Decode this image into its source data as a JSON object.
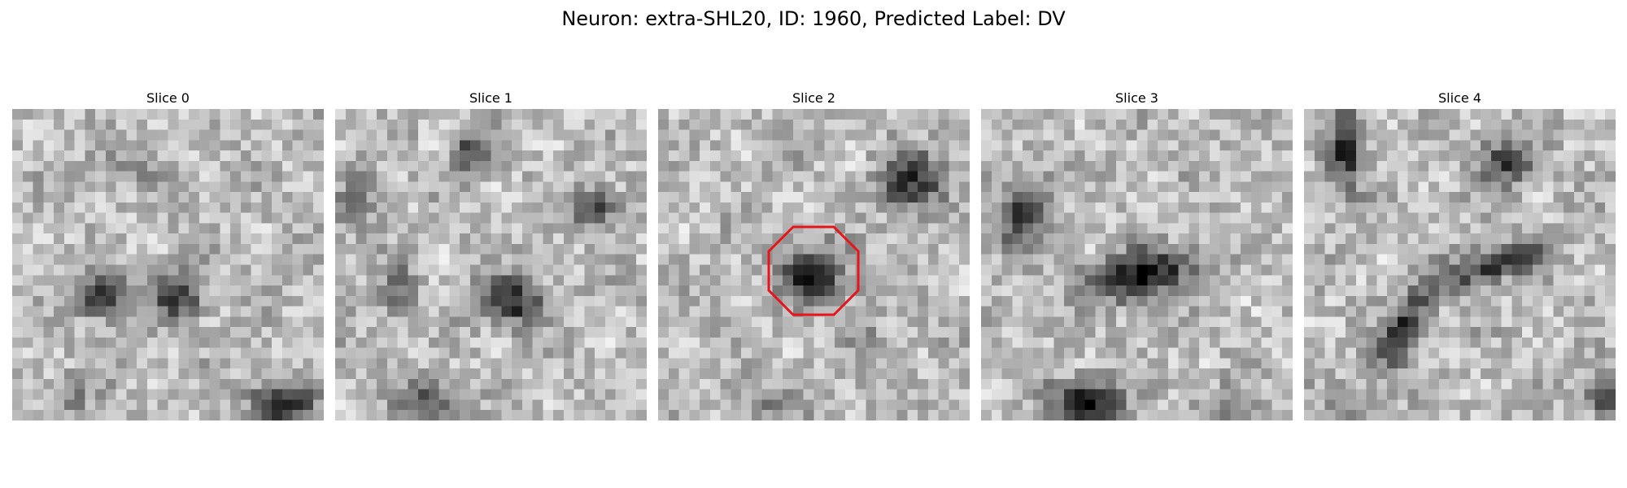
{
  "figure": {
    "title": "Neuron: extra-SHL20, ID: 1960, Predicted Label: DV"
  },
  "slices": [
    {
      "title": "Slice 0"
    },
    {
      "title": "Slice 1"
    },
    {
      "title": "Slice 2"
    },
    {
      "title": "Slice 3"
    },
    {
      "title": "Slice 4"
    }
  ],
  "colors": {
    "colormap": "gray",
    "marker": "#e8141a"
  },
  "marker_icon": "octagon-outline-icon"
}
